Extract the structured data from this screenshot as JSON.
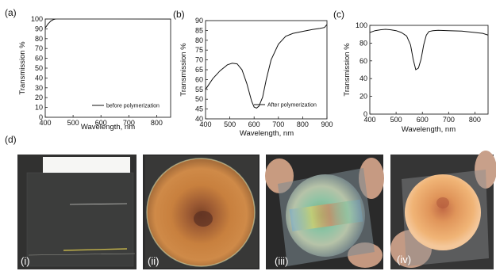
{
  "panels": {
    "a": "(a)",
    "b": "(b)",
    "c": "(c)",
    "d": "(d)"
  },
  "chart_data": [
    {
      "type": "line",
      "panel": "(a)",
      "xlabel": "Wavelength, nm",
      "ylabel": "Transmission %",
      "xlim": [
        400,
        850
      ],
      "ylim": [
        0,
        100
      ],
      "xticks": [
        400,
        500,
        600,
        700,
        800
      ],
      "yticks": [
        0,
        10,
        20,
        30,
        40,
        50,
        60,
        70,
        80,
        90,
        100
      ],
      "legend": "bottom-right",
      "series": [
        {
          "name": "before polymerization",
          "x": [
            400,
            405,
            410,
            415,
            420,
            430,
            440,
            450,
            470,
            500,
            550,
            600,
            650,
            700,
            750,
            800,
            850
          ],
          "y": [
            91,
            93,
            95,
            96.5,
            98,
            99.5,
            100.3,
            100.6,
            100.8,
            100.8,
            100.6,
            100.5,
            100.4,
            100.3,
            100.2,
            100.1,
            100
          ]
        }
      ]
    },
    {
      "type": "line",
      "panel": "(b)",
      "xlabel": "Wavelength, nm",
      "ylabel": "Transmission %",
      "xlim": [
        400,
        900
      ],
      "ylim": [
        40,
        90
      ],
      "xticks": [
        400,
        500,
        600,
        700,
        800,
        900
      ],
      "yticks": [
        40,
        45,
        50,
        55,
        60,
        65,
        70,
        75,
        80,
        85,
        90
      ],
      "legend": "bottom-right",
      "series": [
        {
          "name": "After polymerization",
          "x": [
            400,
            430,
            460,
            490,
            510,
            530,
            550,
            570,
            590,
            600,
            610,
            620,
            635,
            650,
            670,
            700,
            730,
            760,
            800,
            840,
            870,
            890,
            900
          ],
          "y": [
            55,
            60.5,
            64.5,
            67.5,
            68.3,
            68,
            65,
            58,
            49,
            46,
            45.5,
            46.5,
            51,
            60,
            70,
            78,
            82,
            83.5,
            84.5,
            85.5,
            86,
            86.5,
            88
          ]
        }
      ]
    },
    {
      "type": "line",
      "panel": "(c)",
      "xlabel": "Wavelength, nm",
      "ylabel": "Transmission %",
      "xlim": [
        400,
        850
      ],
      "ylim": [
        0,
        100
      ],
      "xticks": [
        400,
        500,
        600,
        700,
        800
      ],
      "yticks": [
        0,
        20,
        40,
        60,
        80,
        100
      ],
      "series": [
        {
          "x": [
            400,
            420,
            440,
            460,
            480,
            500,
            520,
            540,
            555,
            565,
            575,
            585,
            595,
            605,
            615,
            625,
            640,
            660,
            700,
            750,
            800,
            830,
            850
          ],
          "y": [
            92,
            94,
            95,
            95.5,
            95,
            94,
            92,
            88,
            78,
            62,
            50,
            52,
            62,
            78,
            89,
            93,
            94,
            94.5,
            94,
            93.5,
            92,
            91,
            89
          ]
        }
      ]
    }
  ],
  "photos": [
    {
      "label": "(i)"
    },
    {
      "label": "(ii)"
    },
    {
      "label": "(iii)"
    },
    {
      "label": "(iv)"
    }
  ]
}
